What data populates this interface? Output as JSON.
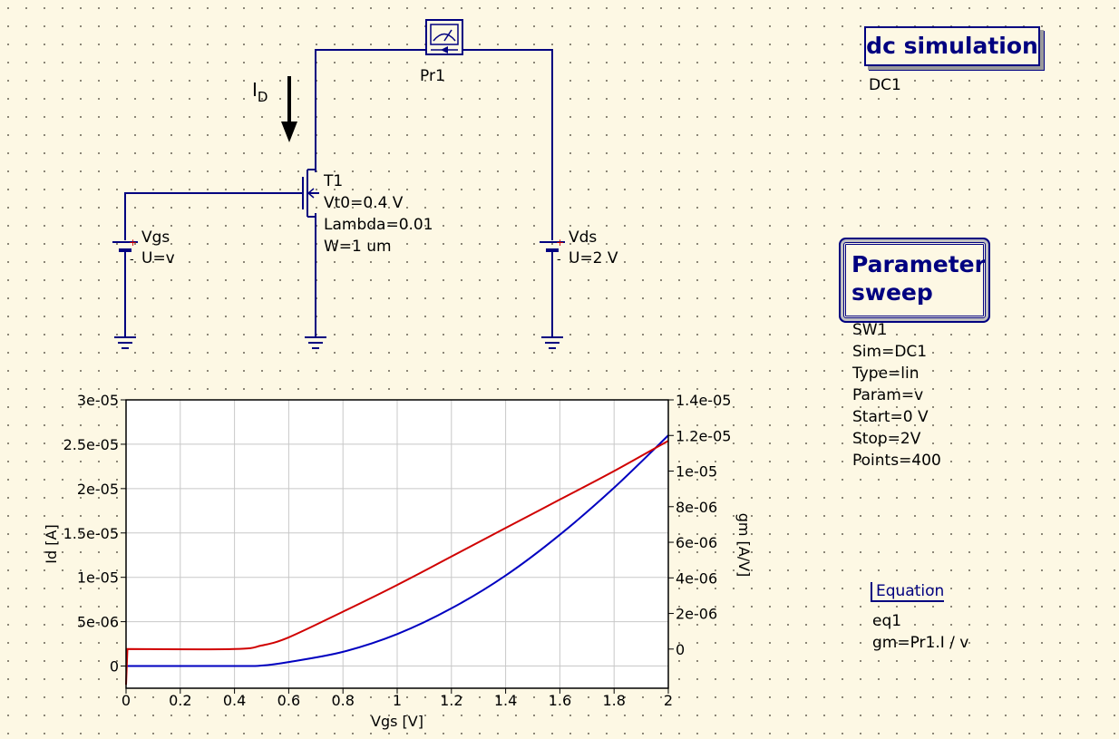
{
  "schematic": {
    "probe_label": "Pr1",
    "current_label_main": "I",
    "current_label_sub": "D",
    "transistor": {
      "name": "T1",
      "params": [
        "Vt0=0.4 V",
        "Lambda=0.01",
        "W=1 um"
      ]
    },
    "source_vgs": {
      "name": "Vgs",
      "value": "U=v"
    },
    "source_vds": {
      "name": "Vds",
      "value": "U=2 V"
    }
  },
  "dc_simulation": {
    "title": "dc simulation",
    "name": "DC1"
  },
  "parameter_sweep": {
    "title_line1": "Parameter",
    "title_line2": "sweep",
    "lines": [
      "SW1",
      "Sim=DC1",
      "Type=lin",
      "Param=v",
      "Start=0 V",
      "Stop=2V",
      "Points=400"
    ]
  },
  "equation": {
    "title": "Equation",
    "lines": [
      "eq1",
      "gm=Pr1.I / v"
    ]
  },
  "colors": {
    "wire": "#000080",
    "left_axis_series": "#0000c0",
    "right_axis_series": "#d00000",
    "background": "#fdf8e4"
  },
  "chart_data": {
    "type": "line",
    "xlabel": "Vgs [V]",
    "ylabel": "Id [A]",
    "y2label": "gm [A/V]",
    "xlim": [
      0,
      2
    ],
    "ylim": [
      -2.5e-06,
      3e-05
    ],
    "y2lim": [
      -2.2e-06,
      1.4e-05
    ],
    "grid": true,
    "x_ticks": [
      "0",
      "0.2",
      "0.4",
      "0.6",
      "0.8",
      "1",
      "1.2",
      "1.4",
      "1.6",
      "1.8",
      "2"
    ],
    "y_ticks": [
      "0",
      "5e-06",
      "1e-05",
      "1.5e-05",
      "2e-05",
      "2.5e-05",
      "3e-05"
    ],
    "y2_ticks": [
      "0",
      "2e-06",
      "4e-06",
      "6e-06",
      "8e-06",
      "1e-05",
      "1.2e-05",
      "1.4e-05"
    ],
    "series": [
      {
        "axis": "left",
        "x": [
          0,
          0.4,
          0.5,
          0.6,
          0.8,
          1.0,
          1.2,
          1.4,
          1.6,
          1.8,
          2.0
        ],
        "values": [
          0,
          0,
          5e-08,
          4.5e-07,
          1.6e-06,
          3.6e-06,
          6.5e-06,
          1.02e-05,
          1.48e-05,
          2.01e-05,
          2.6e-05
        ]
      },
      {
        "axis": "right",
        "x": [
          0,
          0.005,
          0.4,
          0.5,
          0.6,
          0.8,
          1.0,
          1.2,
          1.4,
          1.6,
          1.8,
          2.0
        ],
        "values": [
          -2e-06,
          0,
          0,
          2e-07,
          6.6e-07,
          2.1e-06,
          3.6e-06,
          5.2e-06,
          6.8e-06,
          8.4e-06,
          1e-05,
          1.17e-05
        ]
      }
    ]
  }
}
